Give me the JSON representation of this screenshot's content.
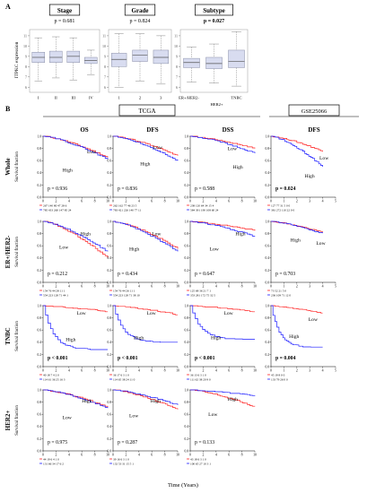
{
  "panel_a": {
    "letter": "A",
    "ylabel": "ITPKC expression",
    "yticks": [
      "6",
      "7",
      "8",
      "9",
      "10",
      "11"
    ],
    "plots": [
      {
        "title": "Stage",
        "pvalue": "p = 0.681",
        "bold": false,
        "categories": [
          "I",
          "II",
          "III",
          "IV"
        ],
        "boxes": [
          {
            "wlo": 6.6,
            "q1": 8.4,
            "med": 8.9,
            "q3": 9.4,
            "whi": 10.8
          },
          {
            "wlo": 6.9,
            "q1": 8.4,
            "med": 8.9,
            "q3": 9.5,
            "whi": 10.9
          },
          {
            "wlo": 6.7,
            "q1": 8.4,
            "med": 9.0,
            "q3": 9.5,
            "whi": 10.8
          },
          {
            "wlo": 7.2,
            "q1": 8.3,
            "med": 8.6,
            "q3": 8.9,
            "whi": 9.6
          }
        ]
      },
      {
        "title": "Grade",
        "pvalue": "p = 0.824",
        "bold": false,
        "categories": [
          "1",
          "2",
          "3"
        ],
        "boxes": [
          {
            "wlo": 6.0,
            "q1": 8.0,
            "med": 8.7,
            "q3": 9.3,
            "whi": 11.2
          },
          {
            "wlo": 6.6,
            "q1": 8.5,
            "med": 9.1,
            "q3": 9.6,
            "whi": 11.2
          },
          {
            "wlo": 6.3,
            "q1": 8.3,
            "med": 8.9,
            "q3": 9.6,
            "whi": 11.0
          }
        ]
      },
      {
        "title": "Subtype",
        "pvalue": "p = 0.027",
        "bold": true,
        "categories": [
          "ER+/HER2-",
          "HER2+",
          "TNBC"
        ],
        "cat_offsets": [
          -3,
          3,
          0
        ],
        "boxes": [
          {
            "wlo": 6.5,
            "q1": 7.9,
            "med": 8.4,
            "q3": 8.8,
            "whi": 9.9
          },
          {
            "wlo": 6.4,
            "q1": 7.8,
            "med": 8.3,
            "q3": 8.9,
            "whi": 10.2
          },
          {
            "wlo": 6.1,
            "q1": 7.9,
            "med": 8.5,
            "q3": 9.6,
            "whi": 11.4
          }
        ]
      }
    ]
  },
  "panel_b": {
    "letter": "B",
    "cohorts": [
      {
        "label": "TCGA"
      },
      {
        "label": "GSE25066"
      }
    ],
    "col_headers": [
      "OS",
      "DFS",
      "DSS",
      "DFS"
    ],
    "rows": [
      {
        "label": "Whole",
        "ylabel": "Survival fraction"
      },
      {
        "label": "ER+/HER2-",
        "ylabel": "Survival fraction"
      },
      {
        "label": "TNBC",
        "ylabel": "Survival fraction"
      },
      {
        "label": "HER2+",
        "ylabel": "Survival fraction"
      }
    ],
    "xlabel": "Time (Years)",
    "xticks": [
      "0",
      "2",
      "4",
      "6",
      "8",
      "10"
    ],
    "gse_xticks": [
      "0",
      "1",
      "2",
      "3",
      "4",
      "5"
    ],
    "yticks": [
      "0.0",
      "0.2",
      "0.4",
      "0.6",
      "0.8",
      "1.0"
    ],
    "high_color": "#1a1aff",
    "low_color": "#ff2020",
    "line_labels": {
      "high": "High",
      "low": "Low"
    },
    "cells": [
      [
        {
          "p": "p = 0.936",
          "bold": false,
          "low": "Low",
          "high": "High",
          "lowPos": [
            0.68,
            0.25
          ],
          "highPos": [
            0.3,
            0.55
          ],
          "lowEnd": 0.65,
          "highEnd": 0.62,
          "risk": [
            "267  140   80   47   28    6",
            "785  433  260  147   85   24"
          ]
        },
        {
          "p": "p = 0.836",
          "bold": false,
          "low": "Low",
          "high": "High",
          "lowPos": [
            0.62,
            0.18
          ],
          "highPos": [
            0.42,
            0.45
          ],
          "lowEnd": 0.68,
          "highEnd": 0.6,
          "risk": [
            "262  162   77   46   23    5",
            "783  421  226  140   77   11"
          ]
        },
        {
          "p": "p = 0.588",
          "bold": false,
          "low": "Low",
          "high": "High",
          "lowPos": [
            0.58,
            0.2
          ],
          "highPos": [
            0.66,
            0.5
          ],
          "lowEnd": 0.8,
          "highEnd": 0.72,
          "risk": [
            "238  120   64   34   15    4",
            "584  391  190  108   60   24"
          ]
        },
        {
          "p": "p = 0.024",
          "bold": true,
          "low": "Low",
          "high": "High",
          "lowPos": [
            0.75,
            0.35
          ],
          "highPos": [
            0.52,
            0.65
          ],
          "lowEnd": 0.75,
          "highEnd": 0.5,
          "risk": [
            "127   77   31    5    0    0",
            "381  272  110   22    0    0"
          ]
        }
      ],
      [
        {
          "p": "p = 0.212",
          "bold": false,
          "low": "Low",
          "high": "High",
          "lowPos": [
            0.25,
            0.42
          ],
          "highPos": [
            0.58,
            0.2
          ],
          "lowEnd": 0.4,
          "highEnd": 0.5,
          "risk": [
            "154   76   44   28   11    1",
            "554  223  128   71   44    1"
          ]
        },
        {
          "p": "p = 0.434",
          "bold": false,
          "low": "Low",
          "high": "High",
          "lowPos": [
            0.6,
            0.2
          ],
          "highPos": [
            0.25,
            0.45
          ],
          "lowEnd": 0.55,
          "highEnd": 0.5,
          "risk": [
            "154   76   44   26   11    1",
            "554  223  128   71   38   10"
          ]
        },
        {
          "p": "p = 0.647",
          "bold": false,
          "low": "Low",
          "high": "High",
          "lowPos": [
            0.3,
            0.45
          ],
          "highPos": [
            0.7,
            0.2
          ],
          "lowEnd": 0.85,
          "highEnd": 0.75,
          "risk": [
            "125   68   36   21    7    1",
            "353  281  172   75   32    5"
          ]
        },
        {
          "p": "p = 0.703",
          "bold": false,
          "low": "Low",
          "high": "High",
          "lowPos": [
            0.7,
            0.35
          ],
          "highPos": [
            0.3,
            0.3
          ],
          "lowEnd": 0.82,
          "highEnd": 0.8,
          "risk": [
            "73   52   21    5    0",
            "236  109   71   12    0"
          ]
        }
      ],
      [
        {
          "p": "p < 0.001",
          "bold": true,
          "low": "Low",
          "high": "High",
          "lowPos": [
            0.52,
            0.12
          ],
          "highPos": [
            0.35,
            0.55
          ],
          "lowEnd": 0.9,
          "highEnd": 0.28,
          "risk": [
            "40   18    7    4    2    0",
            "114   61   36   25   16    3"
          ]
        },
        {
          "p": "p < 0.001",
          "bold": true,
          "low": "Low",
          "high": "High",
          "lowPos": [
            0.52,
            0.12
          ],
          "highPos": [
            0.32,
            0.52
          ],
          "lowEnd": 0.85,
          "highEnd": 0.4,
          "risk": [
            "36   17    6    3    1    0",
            "114   65   38   24   11    0"
          ]
        },
        {
          "p": "p < 0.001",
          "bold": true,
          "low": "Low",
          "high": "High",
          "lowPos": [
            0.52,
            0.12
          ],
          "highPos": [
            0.32,
            0.52
          ],
          "lowEnd": 0.9,
          "highEnd": 0.45,
          "risk": [
            "36   13    6    3    1    0",
            "111   62   38   20    9    0"
          ]
        },
        {
          "p": "p = 0.004",
          "bold": true,
          "low": "Low",
          "high": "High",
          "lowPos": [
            0.58,
            0.22
          ],
          "highPos": [
            0.28,
            0.5
          ],
          "lowEnd": 0.88,
          "highEnd": 0.32,
          "risk": [
            "45   19    8    0    0",
            "133   79   26    0    0"
          ]
        }
      ],
      [
        {
          "p": "p = 0.975",
          "bold": false,
          "low": "Low",
          "high": "High",
          "lowPos": [
            0.3,
            0.45
          ],
          "highPos": [
            0.6,
            0.18
          ],
          "lowEnd": 0.72,
          "highEnd": 0.7,
          "risk": [
            "44   19    6    4    1    0",
            "131   66   34   17    6    2"
          ]
        },
        {
          "p": "p = 0.287",
          "bold": false,
          "low": "Low",
          "high": "High",
          "lowPos": [
            0.25,
            0.42
          ],
          "highPos": [
            0.58,
            0.18
          ],
          "lowEnd": 0.68,
          "highEnd": 0.75,
          "risk": [
            "39   16    6    3    1    0",
            "132   53   31   15    5    1"
          ]
        },
        {
          "p": "p = 0.133",
          "bold": false,
          "low": "Low",
          "high": "High",
          "lowPos": [
            0.28,
            0.4
          ],
          "highPos": [
            0.58,
            0.15
          ],
          "lowEnd": 0.72,
          "highEnd": 0.9,
          "risk": [
            "43   18    6    3    1    0",
            "100   65   27   10    3    1"
          ]
        },
        null
      ]
    ]
  }
}
